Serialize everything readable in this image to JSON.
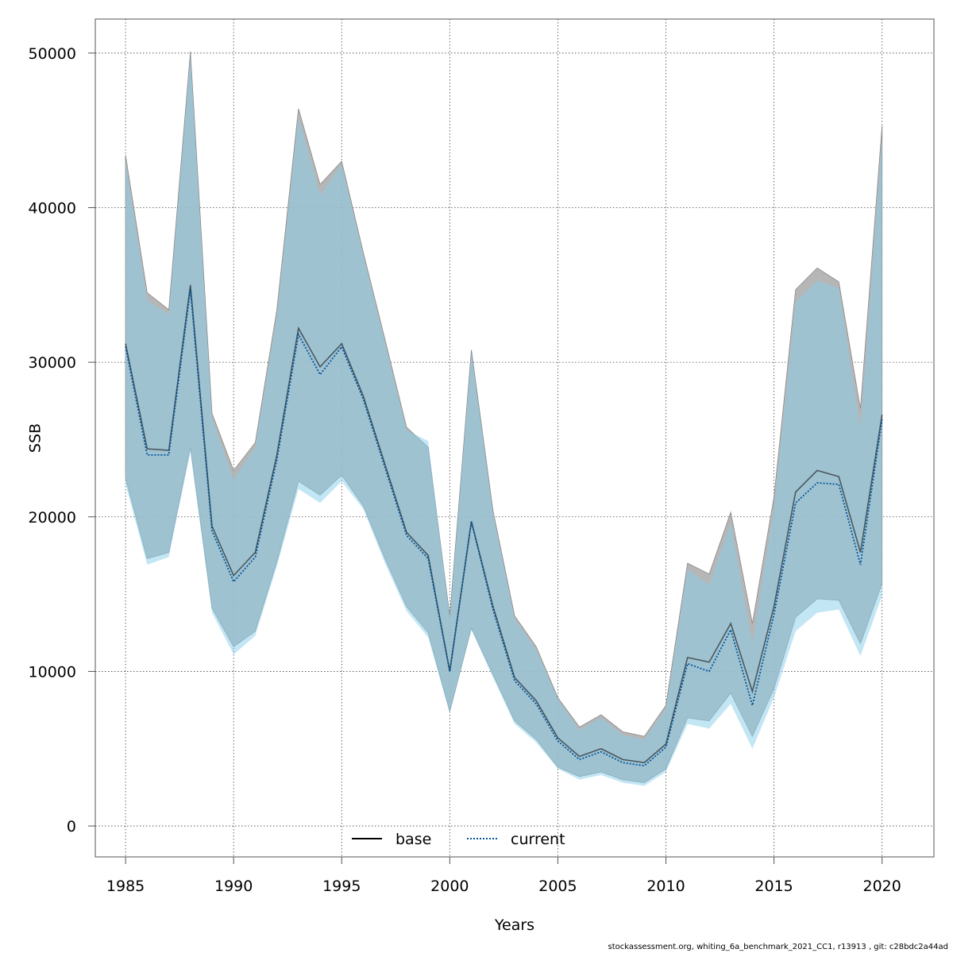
{
  "chart_data": {
    "type": "area",
    "title": "",
    "xlabel": "Years",
    "ylabel": "SSB",
    "xlim": [
      1983.6,
      2022.4
    ],
    "ylim": [
      -2000,
      52200
    ],
    "xticks": [
      1985,
      1990,
      1995,
      2000,
      2005,
      2010,
      2015,
      2020
    ],
    "yticks": [
      0,
      10000,
      20000,
      30000,
      40000,
      50000
    ],
    "grid": true,
    "legend_position": "bottom-center",
    "years": [
      1985,
      1986,
      1987,
      1988,
      1989,
      1990,
      1991,
      1992,
      1993,
      1994,
      1995,
      1996,
      1997,
      1998,
      1999,
      2000,
      2001,
      2002,
      2003,
      2004,
      2005,
      2006,
      2007,
      2008,
      2009,
      2010,
      2011,
      2012,
      2013,
      2014,
      2015,
      2016,
      2017,
      2018,
      2019,
      2020
    ],
    "series": [
      {
        "name": "base",
        "line_style": "solid",
        "line_color": "#000000",
        "band_color": "#a9a9a9",
        "values": [
          31200,
          24400,
          24300,
          35000,
          19400,
          16200,
          17700,
          24000,
          32200,
          29700,
          31200,
          27800,
          23400,
          19000,
          17500,
          10000,
          19700,
          14200,
          9600,
          8100,
          5700,
          4500,
          5000,
          4300,
          4100,
          5300,
          10900,
          10600,
          13100,
          8700,
          14200,
          21600,
          23000,
          22600,
          17700,
          26600
        ],
        "lower": [
          22500,
          17300,
          17700,
          24500,
          14100,
          11600,
          12600,
          17100,
          22300,
          21400,
          22700,
          20700,
          17300,
          14200,
          12500,
          7400,
          12800,
          9800,
          6800,
          5600,
          3800,
          3200,
          3500,
          3000,
          2800,
          3700,
          7000,
          6800,
          8600,
          5800,
          8900,
          13500,
          14700,
          14600,
          11800,
          15700
        ],
        "upper": [
          43400,
          34500,
          33400,
          50100,
          26700,
          23000,
          24800,
          33400,
          46400,
          41500,
          43000,
          37100,
          31500,
          25800,
          24500,
          13600,
          30800,
          20400,
          13600,
          11600,
          8300,
          6400,
          7200,
          6100,
          5800,
          7800,
          17000,
          16300,
          20300,
          13100,
          21300,
          34700,
          36100,
          35200,
          27000,
          45300
        ]
      },
      {
        "name": "current",
        "line_style": "dotted",
        "line_color": "#00559b",
        "band_color": "#87ceeb",
        "values": [
          31000,
          24000,
          24000,
          34700,
          19100,
          15800,
          17400,
          23700,
          31800,
          29200,
          31000,
          27600,
          23200,
          18800,
          17300,
          10000,
          19700,
          14000,
          9400,
          7900,
          5500,
          4300,
          4800,
          4100,
          3900,
          5100,
          10500,
          10000,
          12700,
          7800,
          13700,
          20900,
          22200,
          22100,
          16900,
          26300
        ],
        "lower": [
          22100,
          16900,
          17400,
          24200,
          13800,
          11100,
          12300,
          16800,
          21800,
          20900,
          22300,
          20500,
          17000,
          13900,
          12200,
          7300,
          12700,
          9600,
          6600,
          5400,
          3700,
          3000,
          3300,
          2800,
          2600,
          3500,
          6600,
          6300,
          7900,
          5000,
          8300,
          12600,
          13800,
          14000,
          11000,
          14900
        ],
        "upper": [
          43000,
          34000,
          33100,
          49800,
          26400,
          22400,
          24500,
          33000,
          45900,
          40800,
          42800,
          36900,
          31300,
          25600,
          24900,
          13500,
          30600,
          20200,
          13400,
          11400,
          8200,
          6200,
          7000,
          5900,
          5600,
          7600,
          16600,
          15600,
          19600,
          11800,
          20600,
          33900,
          35300,
          34800,
          25700,
          44500
        ]
      }
    ]
  },
  "footer": {
    "text": "stockassessment.org, whiting_6a_benchmark_2021_CC1, r13913 , git: c28bdc2a44ad"
  }
}
